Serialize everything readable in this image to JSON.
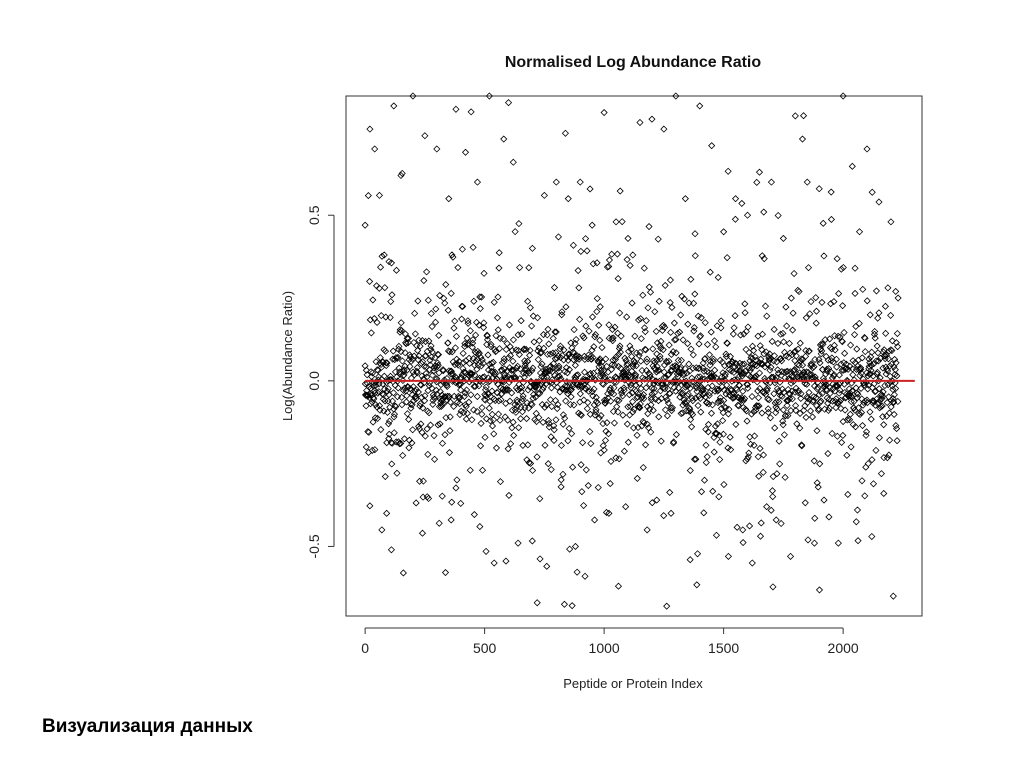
{
  "caption": "Визуализация данных",
  "chart_data": {
    "type": "scatter",
    "title": "Normalised Log Abundance Ratio",
    "xlabel": "Peptide or Protein Index",
    "ylabel": "Log(Abundance Ratio)",
    "xlim": [
      -80,
      2330
    ],
    "ylim": [
      -0.71,
      0.86
    ],
    "x_ticks": [
      0,
      500,
      1000,
      1500,
      2000
    ],
    "x_tick_labels": [
      "0",
      "500",
      "1000",
      "1500",
      "2000"
    ],
    "y_ticks": [
      -0.5,
      0.0,
      0.5
    ],
    "y_tick_labels": [
      "-0.5",
      "0.0",
      "0.5"
    ],
    "grid": false,
    "marker": "open-diamond",
    "point_color": "#000000",
    "reference_line": {
      "y": 0.0,
      "x_range": [
        0,
        2300
      ],
      "color": "#cc2222"
    },
    "n_points": 2240,
    "series": [
      {
        "x": [
          0,
          20,
          40,
          60,
          80,
          100,
          120,
          150,
          200,
          250,
          300,
          350,
          380,
          420,
          470,
          520,
          580,
          600,
          620,
          680,
          700,
          750,
          800,
          850,
          900,
          950,
          1000,
          1050,
          1100,
          1120,
          1150,
          1200,
          1250,
          1300,
          1340,
          1400,
          1450,
          1500,
          1550,
          1600,
          1650,
          1700,
          1750,
          1800,
          1830,
          1850,
          1900,
          1950,
          2000,
          2050,
          2100,
          2150,
          2200,
          2220,
          2230,
          5,
          30,
          70,
          90,
          110,
          160,
          240,
          260,
          310,
          360,
          400,
          440,
          480,
          540,
          640,
          720,
          760,
          820,
          880,
          920,
          960,
          1020,
          1060,
          1090,
          1180,
          1220,
          1280,
          1360,
          1420,
          1480,
          1520,
          1580,
          1620,
          1680,
          1720,
          1780,
          1880,
          1920,
          1980,
          2060,
          2120,
          2170,
          2210
        ],
        "y": [
          0.47,
          0.76,
          0.7,
          0.56,
          0.38,
          0.36,
          0.83,
          0.62,
          0.86,
          0.74,
          0.7,
          0.55,
          0.82,
          0.69,
          0.6,
          0.86,
          0.73,
          0.84,
          0.66,
          0.24,
          0.4,
          0.56,
          0.6,
          0.55,
          0.6,
          0.47,
          0.81,
          0.48,
          0.43,
          0.38,
          0.78,
          0.79,
          0.76,
          0.86,
          0.55,
          0.83,
          0.71,
          0.45,
          0.55,
          0.5,
          0.63,
          0.6,
          0.43,
          0.8,
          0.73,
          0.6,
          0.58,
          0.57,
          0.86,
          0.34,
          0.7,
          0.54,
          0.48,
          0.27,
          0.25,
          -0.2,
          -0.21,
          -0.45,
          -0.4,
          -0.51,
          -0.58,
          -0.46,
          -0.35,
          -0.43,
          -0.42,
          -0.37,
          -0.27,
          -0.44,
          -0.55,
          -0.49,
          -0.67,
          -0.56,
          -0.32,
          -0.5,
          -0.59,
          -0.42,
          -0.4,
          -0.62,
          -0.38,
          -0.45,
          -0.36,
          -0.4,
          -0.54,
          -0.3,
          -0.35,
          -0.53,
          -0.45,
          -0.55,
          -0.38,
          -0.42,
          -0.53,
          -0.49,
          -0.36,
          -0.49,
          -0.39,
          -0.47,
          -0.34,
          -0.65
        ]
      }
    ],
    "background_distribution": {
      "core_sd": 0.06,
      "mid_sd": 0.15,
      "tail_sd": 0.3,
      "center": 0.0
    }
  }
}
